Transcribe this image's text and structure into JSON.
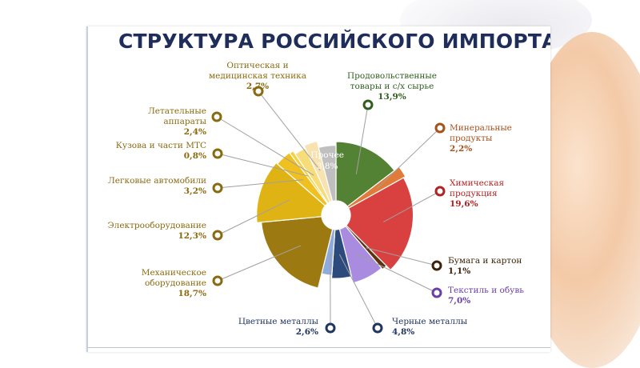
{
  "title": "СТРУКТУРА РОССИЙСКОГО ИМПОРТА",
  "chart_data": {
    "type": "pie",
    "variant": "donut",
    "title": "СТРУКТУРА РОССИЙСКОГО ИМПОРТА",
    "unit": "%",
    "slices": [
      {
        "label_lines": [
          "Продовольственные",
          "товары  и с/х сырье"
        ],
        "value_text": "13,9%",
        "value": 13.9,
        "color": "#548235",
        "label_color": "#2f5f1e"
      },
      {
        "label_lines": [
          "Минеральные",
          "продукты"
        ],
        "value_text": "2,2%",
        "value": 2.2,
        "color": "#e07b39",
        "label_color": "#a6511c"
      },
      {
        "label_lines": [
          "Химическая",
          "продукция"
        ],
        "value_text": "19,6%",
        "value": 19.6,
        "color": "#d94040",
        "label_color": "#b22222"
      },
      {
        "label_lines": [
          "Бумага и картон"
        ],
        "value_text": "1,1%",
        "value": 1.1,
        "color": "#5c3310",
        "label_color": "#3e2209"
      },
      {
        "label_lines": [
          "Текстиль и обувь"
        ],
        "value_text": "7,0%",
        "value": 7.0,
        "color": "#a98ce0",
        "label_color": "#6a3fa8"
      },
      {
        "label_lines": [
          "Черные металлы"
        ],
        "value_text": "4,8%",
        "value": 4.8,
        "color": "#2c4a7c",
        "label_color": "#1f3560"
      },
      {
        "label_lines": [
          "Цветные металлы"
        ],
        "value_text": "2,6%",
        "value": 2.6,
        "color": "#8faadc",
        "label_color": "#1f3560"
      },
      {
        "label_lines": [
          "Механическое",
          "оборудование"
        ],
        "value_text": "18,7%",
        "value": 18.7,
        "color": "#9c7a11",
        "label_color": "#8a6a10"
      },
      {
        "label_lines": [
          "Электрооборудование"
        ],
        "value_text": "12,3%",
        "value": 12.3,
        "color": "#e0b315",
        "label_color": "#8a6a10"
      },
      {
        "label_lines": [
          "Легковые автомобили"
        ],
        "value_text": "3,2%",
        "value": 3.2,
        "color": "#f0c020",
        "label_color": "#8a6a10"
      },
      {
        "label_lines": [
          "Кузова и части МТС"
        ],
        "value_text": "0,8%",
        "value": 0.8,
        "color": "#f5d040",
        "label_color": "#8a6a10"
      },
      {
        "label_lines": [
          "Летательные",
          "аппараты"
        ],
        "value_text": "2,4%",
        "value": 2.4,
        "color": "#f7dc7a",
        "label_color": "#8a6a10"
      },
      {
        "label_lines": [
          "Оптическая и",
          "медицинская техника"
        ],
        "value_text": "2,7%",
        "value": 2.7,
        "color": "#f8e3b0",
        "label_color": "#8a6a10"
      },
      {
        "label_lines": [
          "Прочее"
        ],
        "value_text": "3,8%",
        "value": 3.8,
        "color": "#bfbfbf",
        "label_color": "#ffffff",
        "inside": true
      }
    ]
  }
}
